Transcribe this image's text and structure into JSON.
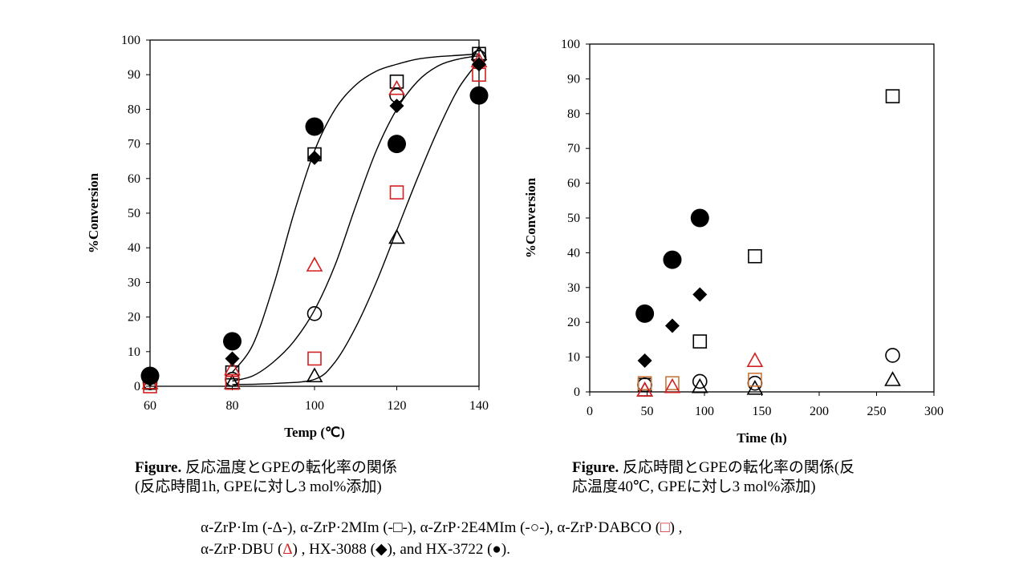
{
  "captions": {
    "left": {
      "label": "Figure.",
      "line1": " 反応温度とGPEの転化率の関係",
      "line2": "(反応時間1h, GPEに対し3 mol%添加)"
    },
    "right": {
      "label": "Figure.",
      "line1": " 反応時間とGPEの転化率の関係(反",
      "line2": "応温度40℃, GPEに対し3 mol%添加)"
    }
  },
  "legend_text": {
    "l1_a": "α-ZrP·Im (-Δ-), α-ZrP·2MIm (-□-), α-ZrP·2E4MIm (-○-), α-ZrP·DABCO (",
    "l1_b": "□",
    "l1_c": ") ,",
    "l2_a": "α-ZrP·DBU (",
    "l2_b": "Δ",
    "l2_c": ") , HX-3088 (◆), and HX-3722 (●)."
  },
  "colors": {
    "black": "#000000",
    "red": "#d42020",
    "orange": "#c8783c"
  },
  "chart_data": [
    {
      "type": "scatter",
      "xlabel": "Temp (℃)",
      "ylabel": "%Conversion",
      "xlim": [
        60,
        140
      ],
      "ylim": [
        0,
        100
      ],
      "xticks": [
        60,
        80,
        100,
        120,
        140
      ],
      "yticks": [
        0,
        10,
        20,
        30,
        40,
        50,
        60,
        70,
        80,
        90,
        100
      ],
      "grid": false,
      "series": [
        {
          "marker": "triangle-open",
          "color": "#000000",
          "x": [
            60,
            80,
            100,
            120,
            140
          ],
          "y": [
            1,
            1,
            3,
            43,
            96
          ]
        },
        {
          "marker": "square-open",
          "color": "#000000",
          "x": [
            60,
            80,
            100,
            120,
            140
          ],
          "y": [
            1,
            4,
            67,
            88,
            96
          ]
        },
        {
          "marker": "circle-open",
          "color": "#000000",
          "x": [
            60,
            80,
            100,
            120,
            140
          ],
          "y": [
            1,
            2,
            21,
            84,
            95
          ]
        },
        {
          "marker": "square-open",
          "color": "#d42020",
          "x": [
            60,
            80,
            100,
            120,
            140
          ],
          "y": [
            0,
            1,
            8,
            56,
            90
          ]
        },
        {
          "marker": "triangle-open",
          "color": "#d42020",
          "x": [
            60,
            80,
            100,
            120,
            140
          ],
          "y": [
            1,
            5,
            35,
            86,
            94
          ]
        },
        {
          "marker": "diamond-filled",
          "color": "#000000",
          "x": [
            60,
            80,
            100,
            120,
            140
          ],
          "y": [
            2,
            8,
            66,
            81,
            93
          ]
        },
        {
          "marker": "circle-filled",
          "color": "#000000",
          "x": [
            60,
            80,
            100,
            120,
            140
          ],
          "y": [
            3,
            13,
            75,
            70,
            84
          ]
        }
      ],
      "trend_curves": [
        {
          "x": [
            80,
            85,
            90,
            95,
            100,
            105,
            110,
            115,
            120,
            125,
            130,
            135,
            140
          ],
          "y": [
            4,
            12,
            29,
            50,
            68,
            80,
            87,
            91,
            93,
            94.5,
            95.2,
            95.6,
            96
          ]
        },
        {
          "x": [
            80,
            85,
            90,
            95,
            100,
            105,
            110,
            115,
            120,
            125,
            130,
            135,
            140
          ],
          "y": [
            1.5,
            3,
            7,
            13,
            22,
            35,
            52,
            68,
            80,
            88,
            92.5,
            94.5,
            95.5
          ]
        },
        {
          "x": [
            80,
            90,
            100,
            105,
            110,
            115,
            120,
            125,
            130,
            135,
            140
          ],
          "y": [
            0.5,
            0.8,
            2,
            7,
            17,
            30,
            45,
            60,
            74,
            86,
            94
          ]
        }
      ]
    },
    {
      "type": "scatter",
      "xlabel": "Time (h)",
      "ylabel": "%Conversion",
      "xlim": [
        0,
        300
      ],
      "ylim": [
        0,
        100
      ],
      "xticks": [
        0,
        50,
        100,
        150,
        200,
        250,
        300
      ],
      "yticks": [
        0,
        10,
        20,
        30,
        40,
        50,
        60,
        70,
        80,
        90,
        100
      ],
      "grid": false,
      "series": [
        {
          "marker": "triangle-open",
          "color": "#000000",
          "x": [
            48,
            96,
            144,
            264
          ],
          "y": [
            0.5,
            1.5,
            1,
            3.5
          ]
        },
        {
          "marker": "square-open",
          "color": "#000000",
          "x": [
            48,
            96,
            144,
            264
          ],
          "y": [
            2,
            14.5,
            39,
            85
          ]
        },
        {
          "marker": "circle-open",
          "color": "#000000",
          "x": [
            48,
            96,
            144,
            264
          ],
          "y": [
            2,
            3,
            2.5,
            10.5
          ]
        },
        {
          "marker": "square-open",
          "color": "#c8783c",
          "x": [
            48,
            72,
            144
          ],
          "y": [
            2.5,
            2.5,
            3.5
          ]
        },
        {
          "marker": "triangle-open",
          "color": "#d42020",
          "x": [
            48,
            72,
            144
          ],
          "y": [
            0.5,
            1.5,
            9
          ]
        },
        {
          "marker": "diamond-filled",
          "color": "#000000",
          "x": [
            48,
            72,
            96
          ],
          "y": [
            9,
            19,
            28
          ]
        },
        {
          "marker": "circle-filled",
          "color": "#000000",
          "x": [
            48,
            72,
            96
          ],
          "y": [
            22.5,
            38,
            50
          ]
        }
      ]
    }
  ]
}
